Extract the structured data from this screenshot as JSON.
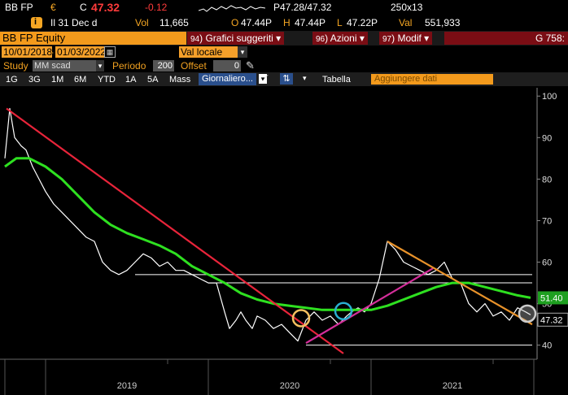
{
  "ticker_bar": {
    "ticker": "BB FP",
    "currency": "€",
    "last_prefix": "C",
    "last": "47.32",
    "change": "-0.12",
    "bid_ask": "P47.28/47.32",
    "size": "250x13"
  },
  "stats_bar": {
    "icon": "info-icon",
    "date": "Il 31 Dec d",
    "volume_label": "Vol",
    "volume": "11,665",
    "open_label": "O",
    "open": "47.44P",
    "high_label": "H",
    "high": "47.44P",
    "low_label": "L",
    "low": "47.22P",
    "value_label": "Val",
    "value": "551,933"
  },
  "header": {
    "security": "BB FP Equity",
    "menus": [
      {
        "num": "94",
        "label": "Grafici suggeriti"
      },
      {
        "num": "96",
        "label": "Azioni"
      },
      {
        "num": "97",
        "label": "Modif"
      }
    ],
    "right_label": "G 758:"
  },
  "params": {
    "start_date": "10/01/2018",
    "end_date": "01/03/2022",
    "currency": "Val locale"
  },
  "study": {
    "label": "Study",
    "value": "MM scad",
    "period_label": "Periodo",
    "period": "200",
    "offset_label": "Offset",
    "offset": "0"
  },
  "toolbar": {
    "ranges": [
      "1G",
      "3G",
      "1M",
      "6M",
      "YTD",
      "1A",
      "5A",
      "Mass"
    ],
    "frequency": "Giornaliero",
    "table": "Tabella",
    "add_data": "Aggiungere dati"
  },
  "chart_data": {
    "type": "line",
    "y_axis": {
      "min": 37,
      "max": 102,
      "ticks": [
        100,
        90,
        80,
        70,
        60,
        50,
        40
      ],
      "position": "right"
    },
    "x_axis": {
      "labels": [
        "2019",
        "2020",
        "2021"
      ]
    },
    "last_price_label": "47.32",
    "ma_label": "51.40",
    "series": [
      {
        "role": "price",
        "color": "#ffffff",
        "x": [
          2018.75,
          2018.78,
          2018.81,
          2018.85,
          2018.88,
          2018.92,
          2018.96,
          2019.0,
          2019.05,
          2019.1,
          2019.15,
          2019.2,
          2019.25,
          2019.3,
          2019.35,
          2019.4,
          2019.45,
          2019.5,
          2019.55,
          2019.6,
          2019.65,
          2019.7,
          2019.75,
          2019.8,
          2019.85,
          2019.9,
          2019.95,
          2020.0,
          2020.05,
          2020.1,
          2020.13,
          2020.17,
          2020.2,
          2020.23,
          2020.27,
          2020.3,
          2020.35,
          2020.4,
          2020.45,
          2020.5,
          2020.55,
          2020.6,
          2020.65,
          2020.7,
          2020.75,
          2020.8,
          2020.85,
          2020.88,
          2020.92,
          2020.96,
          2021.0,
          2021.05,
          2021.1,
          2021.15,
          2021.2,
          2021.25,
          2021.3,
          2021.35,
          2021.4,
          2021.45,
          2021.5,
          2021.55,
          2021.6,
          2021.65,
          2021.7,
          2021.75,
          2021.8,
          2021.85,
          2021.9,
          2021.95,
          2021.98
        ],
        "y": [
          85,
          97,
          90,
          88,
          87,
          83,
          80,
          77,
          74,
          72,
          70,
          68,
          66,
          65,
          60,
          58,
          57,
          58,
          60,
          62,
          61,
          59,
          60,
          58,
          58,
          57,
          56,
          55,
          55,
          48,
          44,
          46,
          48,
          46,
          44,
          47,
          46,
          44,
          45,
          43,
          41,
          46,
          48,
          46,
          47,
          45,
          47,
          48,
          49,
          48,
          50,
          56,
          65,
          63,
          60,
          59,
          58,
          57,
          58,
          60,
          56,
          55,
          50,
          48,
          50,
          47,
          48,
          46,
          49,
          48,
          47.32
        ]
      },
      {
        "role": "moving-average-200",
        "color": "#2ee020",
        "x": [
          2018.75,
          2018.82,
          2018.9,
          2019.0,
          2019.1,
          2019.2,
          2019.3,
          2019.4,
          2019.5,
          2019.6,
          2019.7,
          2019.8,
          2019.9,
          2020.0,
          2020.1,
          2020.2,
          2020.3,
          2020.4,
          2020.5,
          2020.6,
          2020.7,
          2020.8,
          2020.9,
          2021.0,
          2021.1,
          2021.2,
          2021.3,
          2021.4,
          2021.5,
          2021.6,
          2021.7,
          2021.8,
          2021.9,
          2021.98
        ],
        "y": [
          83,
          85,
          85,
          83,
          80,
          76,
          72,
          69,
          67,
          65.5,
          64,
          62,
          59,
          57,
          55,
          52.5,
          51,
          50,
          49.5,
          49,
          48.5,
          48.5,
          48.5,
          48.5,
          49.5,
          51,
          52.5,
          54,
          55,
          55,
          54,
          53,
          52,
          51.4
        ]
      }
    ],
    "trendlines": [
      {
        "color": "#e8243a",
        "from": [
          2018.76,
          97
        ],
        "to": [
          2020.83,
          38
        ]
      },
      {
        "color": "#d42e9a",
        "from": [
          2020.6,
          40.5
        ],
        "to": [
          2021.38,
          58.5
        ]
      },
      {
        "color": "#e8922a",
        "from": [
          2021.1,
          65
        ],
        "to": [
          2021.99,
          45
        ]
      },
      {
        "color": "#ffffff",
        "from": [
          2019.55,
          57
        ],
        "to": [
          2021.99,
          57
        ]
      },
      {
        "color": "#ffffff",
        "from": [
          2020.0,
          55
        ],
        "to": [
          2021.99,
          55
        ]
      },
      {
        "color": "#ffffff",
        "from": [
          2020.6,
          40
        ],
        "to": [
          2021.99,
          40
        ]
      }
    ],
    "circles": [
      {
        "color": "#f5c060",
        "x": 2020.57,
        "y": 46.5
      },
      {
        "color": "#2ab0d0",
        "x": 2020.83,
        "y": 48.2
      },
      {
        "color": "#cccccc",
        "x": 2021.96,
        "y": 47.6
      }
    ]
  }
}
